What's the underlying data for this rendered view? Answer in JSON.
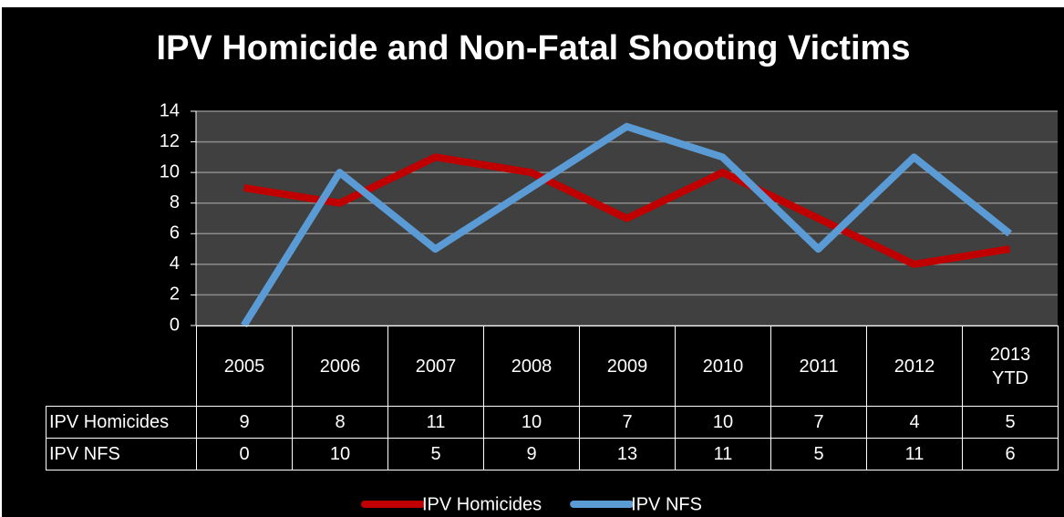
{
  "chart_data": {
    "type": "line",
    "title": "IPV Homicide and Non-Fatal Shooting Victims",
    "categories": [
      "2005",
      "2006",
      "2007",
      "2008",
      "2009",
      "2010",
      "2011",
      "2012",
      "2013\nYTD"
    ],
    "series": [
      {
        "name": "IPV Homicides",
        "color": "#c00000",
        "values": [
          9,
          8,
          11,
          10,
          7,
          10,
          7,
          4,
          5
        ]
      },
      {
        "name": "IPV NFS",
        "color": "#5b9bd5",
        "values": [
          0,
          10,
          5,
          9,
          13,
          11,
          5,
          11,
          6
        ]
      }
    ],
    "ylim": [
      0,
      14
    ],
    "yticks": [
      0,
      2,
      4,
      6,
      8,
      10,
      12,
      14
    ],
    "grid": true,
    "legend": "bottom"
  }
}
